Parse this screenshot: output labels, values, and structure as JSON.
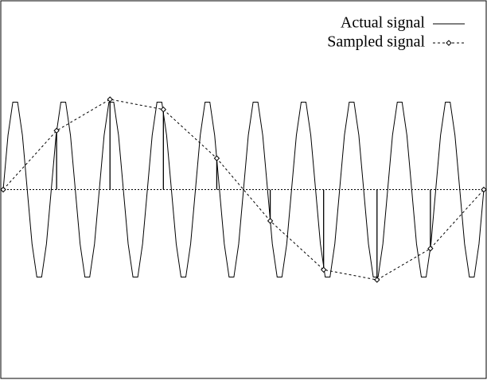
{
  "chart_data": {
    "type": "line",
    "xlim": [
      -0.005,
      1.005
    ],
    "ylim": [
      -2.05,
      2.05
    ],
    "zero_line": true,
    "legend": "upper right",
    "series": [
      {
        "name": "Actual signal",
        "color": "#000000",
        "style": "solid",
        "x": [
          0,
          0.01,
          0.02,
          0.03,
          0.04,
          0.05,
          0.06,
          0.07,
          0.08,
          0.09,
          0.1,
          0.11,
          0.12,
          0.13,
          0.14,
          0.15,
          0.16,
          0.17,
          0.18,
          0.19,
          0.2,
          0.21,
          0.22,
          0.23,
          0.24,
          0.25,
          0.26,
          0.27,
          0.28,
          0.29,
          0.3,
          0.31,
          0.32,
          0.33,
          0.34,
          0.35,
          0.36,
          0.37,
          0.38,
          0.39,
          0.4,
          0.41,
          0.42,
          0.43,
          0.44,
          0.45,
          0.46,
          0.47,
          0.48,
          0.49,
          0.5,
          0.51,
          0.52,
          0.53,
          0.54,
          0.55,
          0.56,
          0.57,
          0.58,
          0.59,
          0.6,
          0.61,
          0.62,
          0.63,
          0.64,
          0.65,
          0.66,
          0.67,
          0.68,
          0.69,
          0.7,
          0.71,
          0.72,
          0.73,
          0.74,
          0.75,
          0.76,
          0.77,
          0.78,
          0.79,
          0.8,
          0.81,
          0.82,
          0.83,
          0.84,
          0.85,
          0.86,
          0.87,
          0.88,
          0.89,
          0.9,
          0.91,
          0.92,
          0.93,
          0.94,
          0.95,
          0.96,
          0.97,
          0.98,
          0.99,
          1
        ],
        "values": [
          0,
          0.59,
          0.95,
          0.95,
          0.59,
          0,
          -0.59,
          -0.95,
          -0.95,
          -0.59,
          0,
          0.59,
          0.95,
          0.95,
          0.59,
          0,
          -0.59,
          -0.95,
          -0.95,
          -0.59,
          0,
          0.59,
          0.95,
          0.95,
          0.59,
          0,
          -0.59,
          -0.95,
          -0.95,
          -0.59,
          0,
          0.59,
          0.95,
          0.95,
          0.59,
          0,
          -0.59,
          -0.95,
          -0.95,
          -0.59,
          0,
          0.59,
          0.95,
          0.95,
          0.59,
          0,
          -0.59,
          -0.95,
          -0.95,
          -0.59,
          0,
          0.59,
          0.95,
          0.95,
          0.59,
          0,
          -0.59,
          -0.95,
          -0.95,
          -0.59,
          0,
          0.59,
          0.95,
          0.95,
          0.59,
          0,
          -0.59,
          -0.95,
          -0.95,
          -0.59,
          0,
          0.59,
          0.95,
          0.95,
          0.59,
          0,
          -0.59,
          -0.95,
          -0.95,
          -0.59,
          0,
          0.59,
          0.95,
          0.95,
          0.59,
          0,
          -0.59,
          -0.95,
          -0.95,
          -0.59,
          0,
          0.59,
          0.95,
          0.95,
          0.59,
          0,
          -0.59,
          -0.95,
          -0.95,
          -0.59,
          0
        ]
      },
      {
        "name": "Sampled signal",
        "color": "#000000",
        "style": "dashed",
        "marker": "diamond",
        "stems": true,
        "x": [
          0,
          0.1111,
          0.2222,
          0.3333,
          0.4444,
          0.5556,
          0.6667,
          0.7778,
          0.8889,
          1
        ],
        "values": [
          0,
          0.64,
          0.98,
          0.87,
          0.34,
          -0.34,
          -0.87,
          -0.98,
          -0.64,
          0
        ]
      }
    ]
  }
}
